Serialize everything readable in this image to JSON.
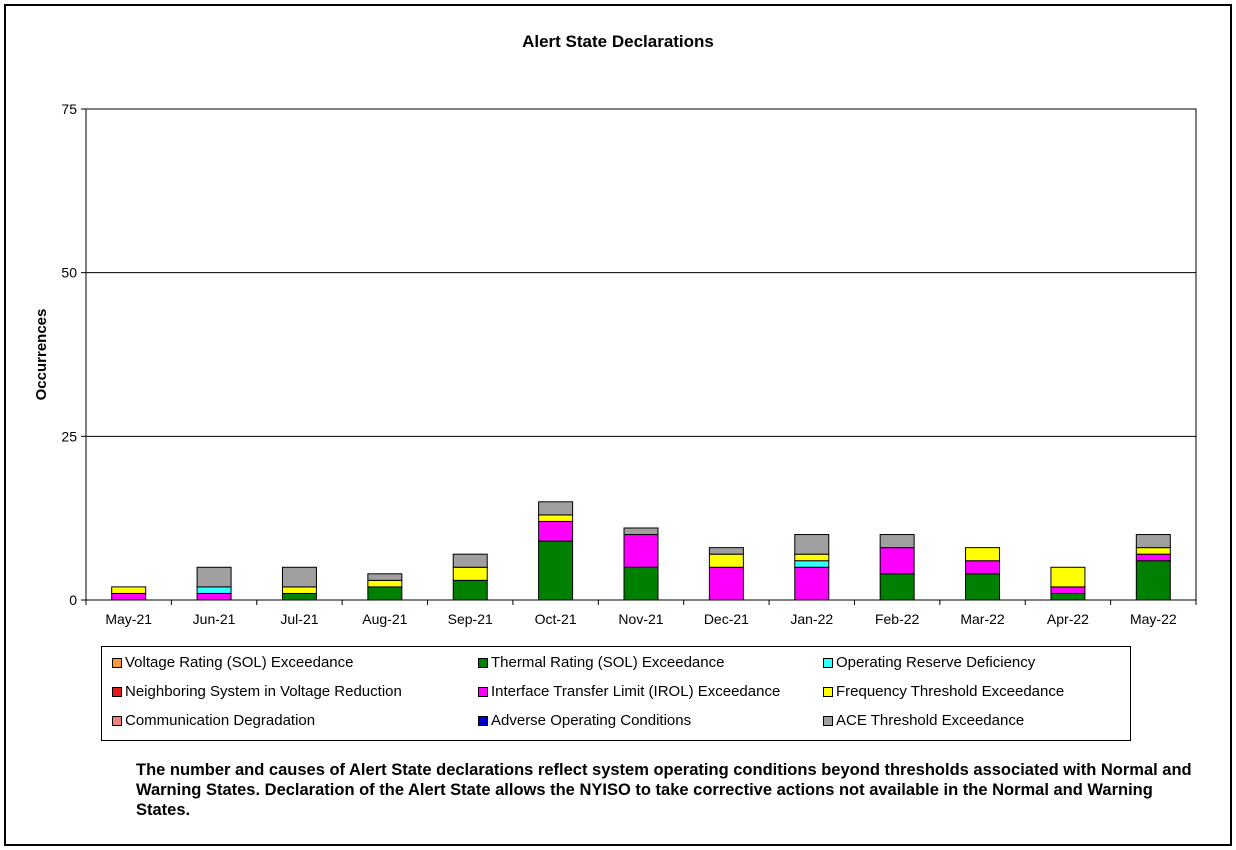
{
  "chart_data": {
    "type": "bar",
    "stacked": true,
    "title": "Alert State Declarations",
    "xlabel": "",
    "ylabel": "Occurrences",
    "ylim": [
      0,
      75
    ],
    "yticks": [
      0,
      25,
      50,
      75
    ],
    "grid": true,
    "legend_position": "bottom",
    "categories": [
      "May-21",
      "Jun-21",
      "Jul-21",
      "Aug-21",
      "Sep-21",
      "Oct-21",
      "Nov-21",
      "Dec-21",
      "Jan-22",
      "Feb-22",
      "Mar-22",
      "Apr-22",
      "May-22"
    ],
    "series": [
      {
        "name": "Voltage Rating (SOL) Exceedance",
        "color": "#FF9933",
        "values": [
          0,
          0,
          0,
          0,
          0,
          0,
          0,
          0,
          0,
          0,
          0,
          0,
          0
        ]
      },
      {
        "name": "Neighboring System in Voltage Reduction",
        "color": "#E31A1C",
        "values": [
          0,
          0,
          0,
          0,
          0,
          0,
          0,
          0,
          0,
          0,
          0,
          0,
          0
        ]
      },
      {
        "name": "Communication Degradation",
        "color": "#F08080",
        "values": [
          0,
          0,
          0,
          0,
          0,
          0,
          0,
          0,
          0,
          0,
          0,
          0,
          0
        ]
      },
      {
        "name": "Thermal Rating (SOL) Exceedance",
        "color": "#008000",
        "values": [
          0,
          0,
          1,
          2,
          3,
          9,
          5,
          0,
          0,
          4,
          4,
          1,
          6
        ]
      },
      {
        "name": "Interface Transfer Limit (IROL) Exceedance",
        "color": "#FF00FF",
        "values": [
          1,
          1,
          0,
          0,
          0,
          3,
          5,
          5,
          5,
          4,
          2,
          1,
          1
        ]
      },
      {
        "name": "Adverse Operating Conditions",
        "color": "#0000CC",
        "values": [
          0,
          0,
          0,
          0,
          0,
          0,
          0,
          0,
          0,
          0,
          0,
          0,
          0
        ]
      },
      {
        "name": "Operating Reserve Deficiency",
        "color": "#33FFFF",
        "values": [
          0,
          1,
          0,
          0,
          0,
          0,
          0,
          0,
          1,
          0,
          0,
          0,
          0
        ]
      },
      {
        "name": "Frequency Threshold Exceedance",
        "color": "#FFFF00",
        "values": [
          1,
          0,
          1,
          1,
          2,
          1,
          0,
          2,
          1,
          0,
          2,
          3,
          1
        ]
      },
      {
        "name": "ACE Threshold Exceedance",
        "color": "#A0A0A0",
        "values": [
          0,
          3,
          3,
          1,
          2,
          2,
          1,
          1,
          3,
          2,
          0,
          0,
          2
        ]
      }
    ]
  },
  "legend_layout": [
    [
      "Voltage Rating (SOL) Exceedance",
      "Thermal Rating (SOL) Exceedance",
      "Operating Reserve Deficiency"
    ],
    [
      "Neighboring System in Voltage Reduction",
      "Interface Transfer Limit (IROL) Exceedance",
      "Frequency Threshold Exceedance"
    ],
    [
      "Communication Degradation",
      "Adverse Operating Conditions",
      "ACE Threshold Exceedance"
    ]
  ],
  "caption": "The number and causes of Alert State declarations reflect system operating conditions beyond thresholds associated with Normal and Warning States.  Declaration of the Alert State allows the NYISO to take corrective actions not available in the Normal and Warning States."
}
